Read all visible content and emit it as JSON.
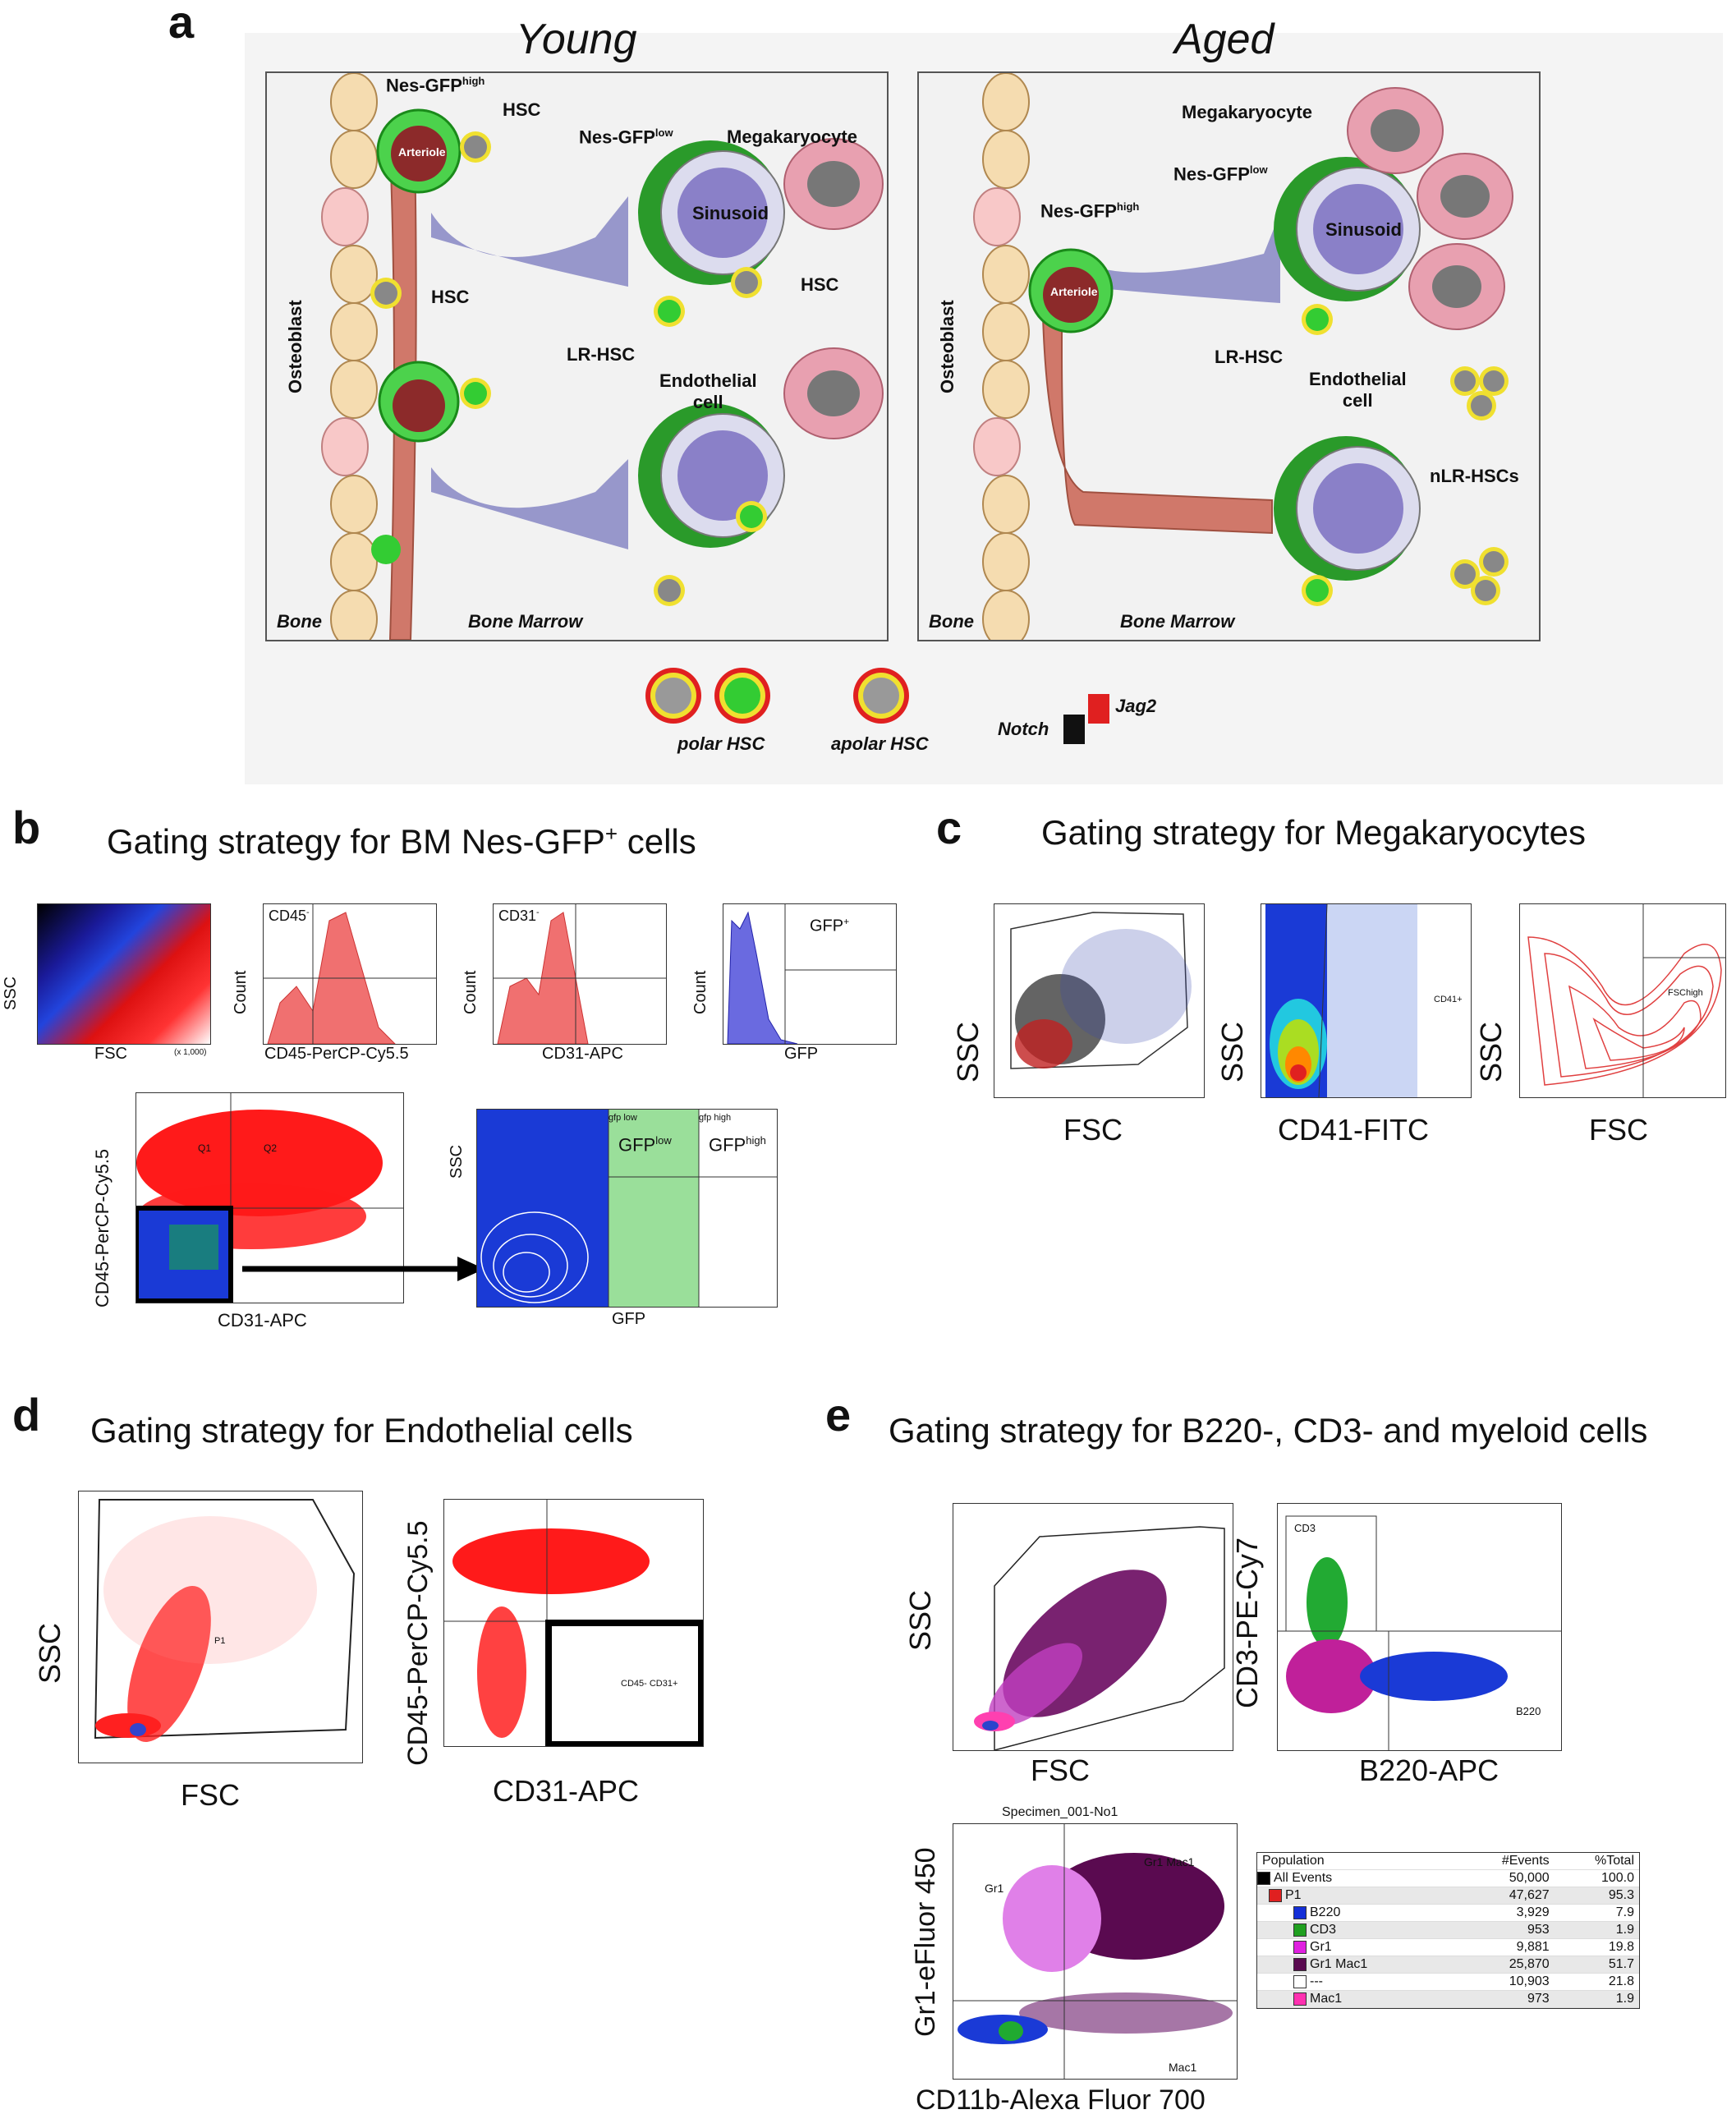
{
  "panel_labels": {
    "a": "a",
    "b": "b",
    "c": "c",
    "d": "d",
    "e": "e"
  },
  "panel_a": {
    "young_title": "Young",
    "aged_title": "Aged",
    "young_labels": {
      "nes_high": "Nes-GFP",
      "nes_high_sup": "high",
      "hsc1": "HSC",
      "nes_low": "Nes-GFP",
      "nes_low_sup": "low",
      "mega": "Megakaryocyte",
      "arteriole": "Arteriole",
      "sinusoid": "Sinusoid",
      "hsc2": "HSC",
      "hsc3": "HSC",
      "lr_hsc": "LR-HSC",
      "endo": "Endothelial",
      "endo2": "cell",
      "osteoblast": "Osteoblast",
      "bone": "Bone",
      "marrow": "Bone Marrow"
    },
    "aged_labels": {
      "mega": "Megakaryocyte",
      "nes_low": "Nes-GFP",
      "nes_low_sup": "low",
      "nes_high": "Nes-GFP",
      "nes_high_sup": "high",
      "sinusoid": "Sinusoid",
      "arteriole": "Arteriole",
      "osteoblast": "Osteoblast",
      "lr_hsc": "LR-HSC",
      "endo": "Endothelial",
      "endo2": "cell",
      "nlr": "nLR-HSCs",
      "bone": "Bone",
      "marrow": "Bone Marrow"
    },
    "legend": {
      "polar": "polar HSC",
      "apolar": "apolar HSC",
      "notch": "Notch",
      "jag2": "Jag2"
    }
  },
  "panel_b": {
    "title": "Gating strategy for BM Nes-GFP",
    "title_sup": "+",
    "title_end": " cells",
    "plots": {
      "p1": {
        "ylabel": "SSC",
        "xlabel": "FSC",
        "scale": "(x 1,000)"
      },
      "p2": {
        "gate": "CD45",
        "gate_sup": "-",
        "ylabel": "Count",
        "xlabel": "CD45-PerCP-Cy5.5"
      },
      "p3": {
        "gate": "CD31",
        "gate_sup": "-",
        "ylabel": "Count",
        "xlabel": "CD31-APC"
      },
      "p4": {
        "gate": "GFP",
        "gate_sup": "+",
        "ylabel": "Count",
        "xlabel": "GFP"
      },
      "p5": {
        "ylabel": "CD45-PerCP-Cy5.5",
        "xlabel": "CD31-APC",
        "q1": "Q1",
        "q2": "Q2"
      },
      "p6": {
        "ylabel": "SSC",
        "xlabel": "GFP",
        "g_low_small": "gfp low",
        "g_high_small": "gfp high",
        "g_low": "GFP",
        "g_low_sup": "low",
        "g_high": "GFP",
        "g_high_sup": "high"
      }
    }
  },
  "panel_c": {
    "title": "Gating strategy for Megakaryocytes",
    "plots": {
      "p1": {
        "ylabel": "SSC",
        "xlabel": "FSC"
      },
      "p2": {
        "ylabel": "SSC",
        "xlabel": "CD41-FITC",
        "gate": "CD41+"
      },
      "p3": {
        "ylabel": "SSC",
        "xlabel": "FSC",
        "gate": "FSChigh"
      }
    }
  },
  "panel_d": {
    "title": "Gating strategy for Endothelial cells",
    "plots": {
      "p1": {
        "ylabel": "SSC",
        "xlabel": "FSC",
        "gate": "P1"
      },
      "p2": {
        "ylabel": "CD45-PerCP-Cy5.5",
        "xlabel": "CD31-APC",
        "gate": "CD45- CD31+"
      }
    }
  },
  "panel_e": {
    "title": "Gating strategy for B220-, CD3- and myeloid cells",
    "plots": {
      "p1": {
        "ylabel": "SSC",
        "xlabel": "FSC"
      },
      "p2": {
        "ylabel": "CD3-PE-Cy7",
        "xlabel": "B220-APC",
        "gate1": "CD3",
        "gate2": "B220"
      },
      "p3": {
        "title": "Specimen_001-No1",
        "ylabel": "Gr1-eFluor 450",
        "xlabel": "CD11b-Alexa Fluor 700",
        "gate1": "Gr1",
        "gate2": "Gr1 Mac1",
        "gate3": "Mac1"
      }
    },
    "table": {
      "headers": [
        "Population",
        "#Events",
        "%Total"
      ],
      "rows": [
        {
          "name": "All Events",
          "events": "50,000",
          "total": "100.0",
          "color": "#000000"
        },
        {
          "name": "P1",
          "events": "47,627",
          "total": "95.3",
          "color": "#e02020"
        },
        {
          "name": "B220",
          "events": "3,929",
          "total": "7.9",
          "color": "#1530d8"
        },
        {
          "name": "CD3",
          "events": "953",
          "total": "1.9",
          "color": "#20a020"
        },
        {
          "name": "Gr1",
          "events": "9,881",
          "total": "19.8",
          "color": "#e020e0"
        },
        {
          "name": "Gr1 Mac1",
          "events": "25,870",
          "total": "51.7",
          "color": "#5a0a50"
        },
        {
          "name": "---",
          "events": "10,903",
          "total": "21.8",
          "color": "#ffffff"
        },
        {
          "name": "Mac1",
          "events": "973",
          "total": "1.9",
          "color": "#ff30b0"
        }
      ]
    }
  }
}
